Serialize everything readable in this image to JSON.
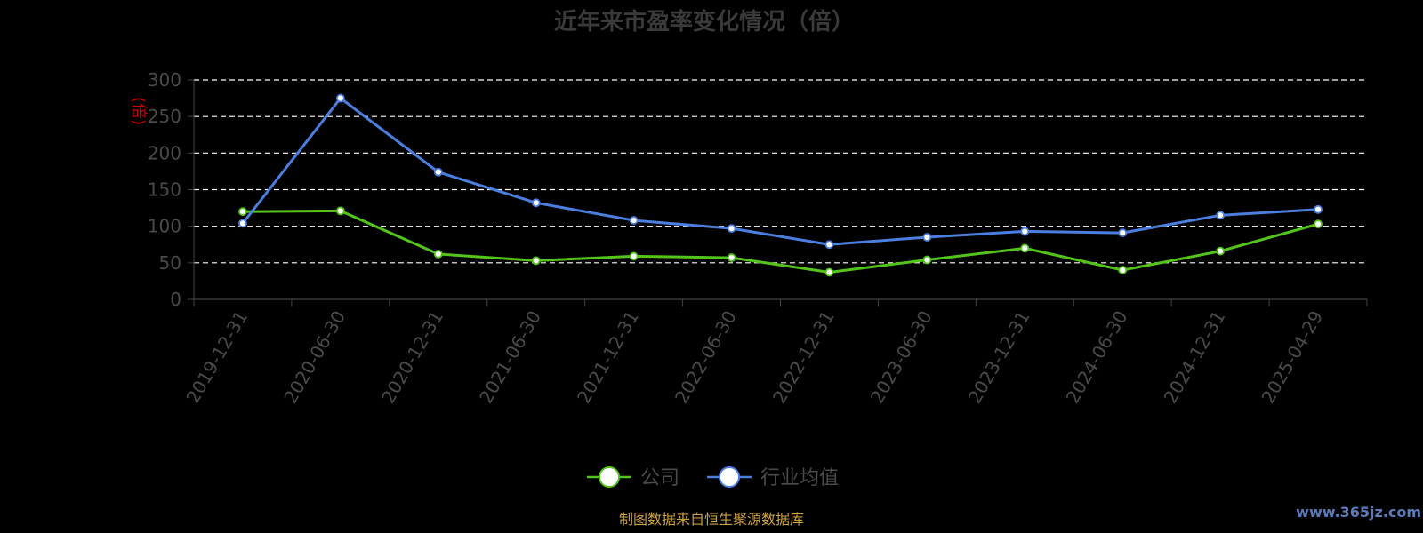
{
  "chart_data": {
    "type": "line",
    "title": "近年来市盈率变化情况（倍）",
    "ylabel": "(倍)",
    "ylim": [
      0,
      300
    ],
    "yticks": [
      0,
      50,
      100,
      150,
      200,
      250,
      300
    ],
    "categories": [
      "2019-12-31",
      "2020-06-30",
      "2020-12-31",
      "2021-06-30",
      "2021-12-31",
      "2022-06-30",
      "2022-12-31",
      "2023-06-30",
      "2023-12-31",
      "2024-06-30",
      "2024-12-31",
      "2025-04-29"
    ],
    "series": [
      {
        "name": "公司",
        "color": "#52c41a",
        "values": [
          120,
          121,
          62,
          53,
          59,
          57,
          37,
          54,
          70,
          40,
          66,
          103
        ]
      },
      {
        "name": "行业均值",
        "color": "#4a7fe0",
        "values": [
          104,
          275,
          174,
          132,
          108,
          97,
          75,
          85,
          93,
          91,
          115,
          123
        ]
      }
    ],
    "grid": true,
    "legend_position": "bottom-center"
  },
  "footer": {
    "source": "制图数据来自恒生聚源数据库",
    "watermark": "www.365jz.com"
  }
}
